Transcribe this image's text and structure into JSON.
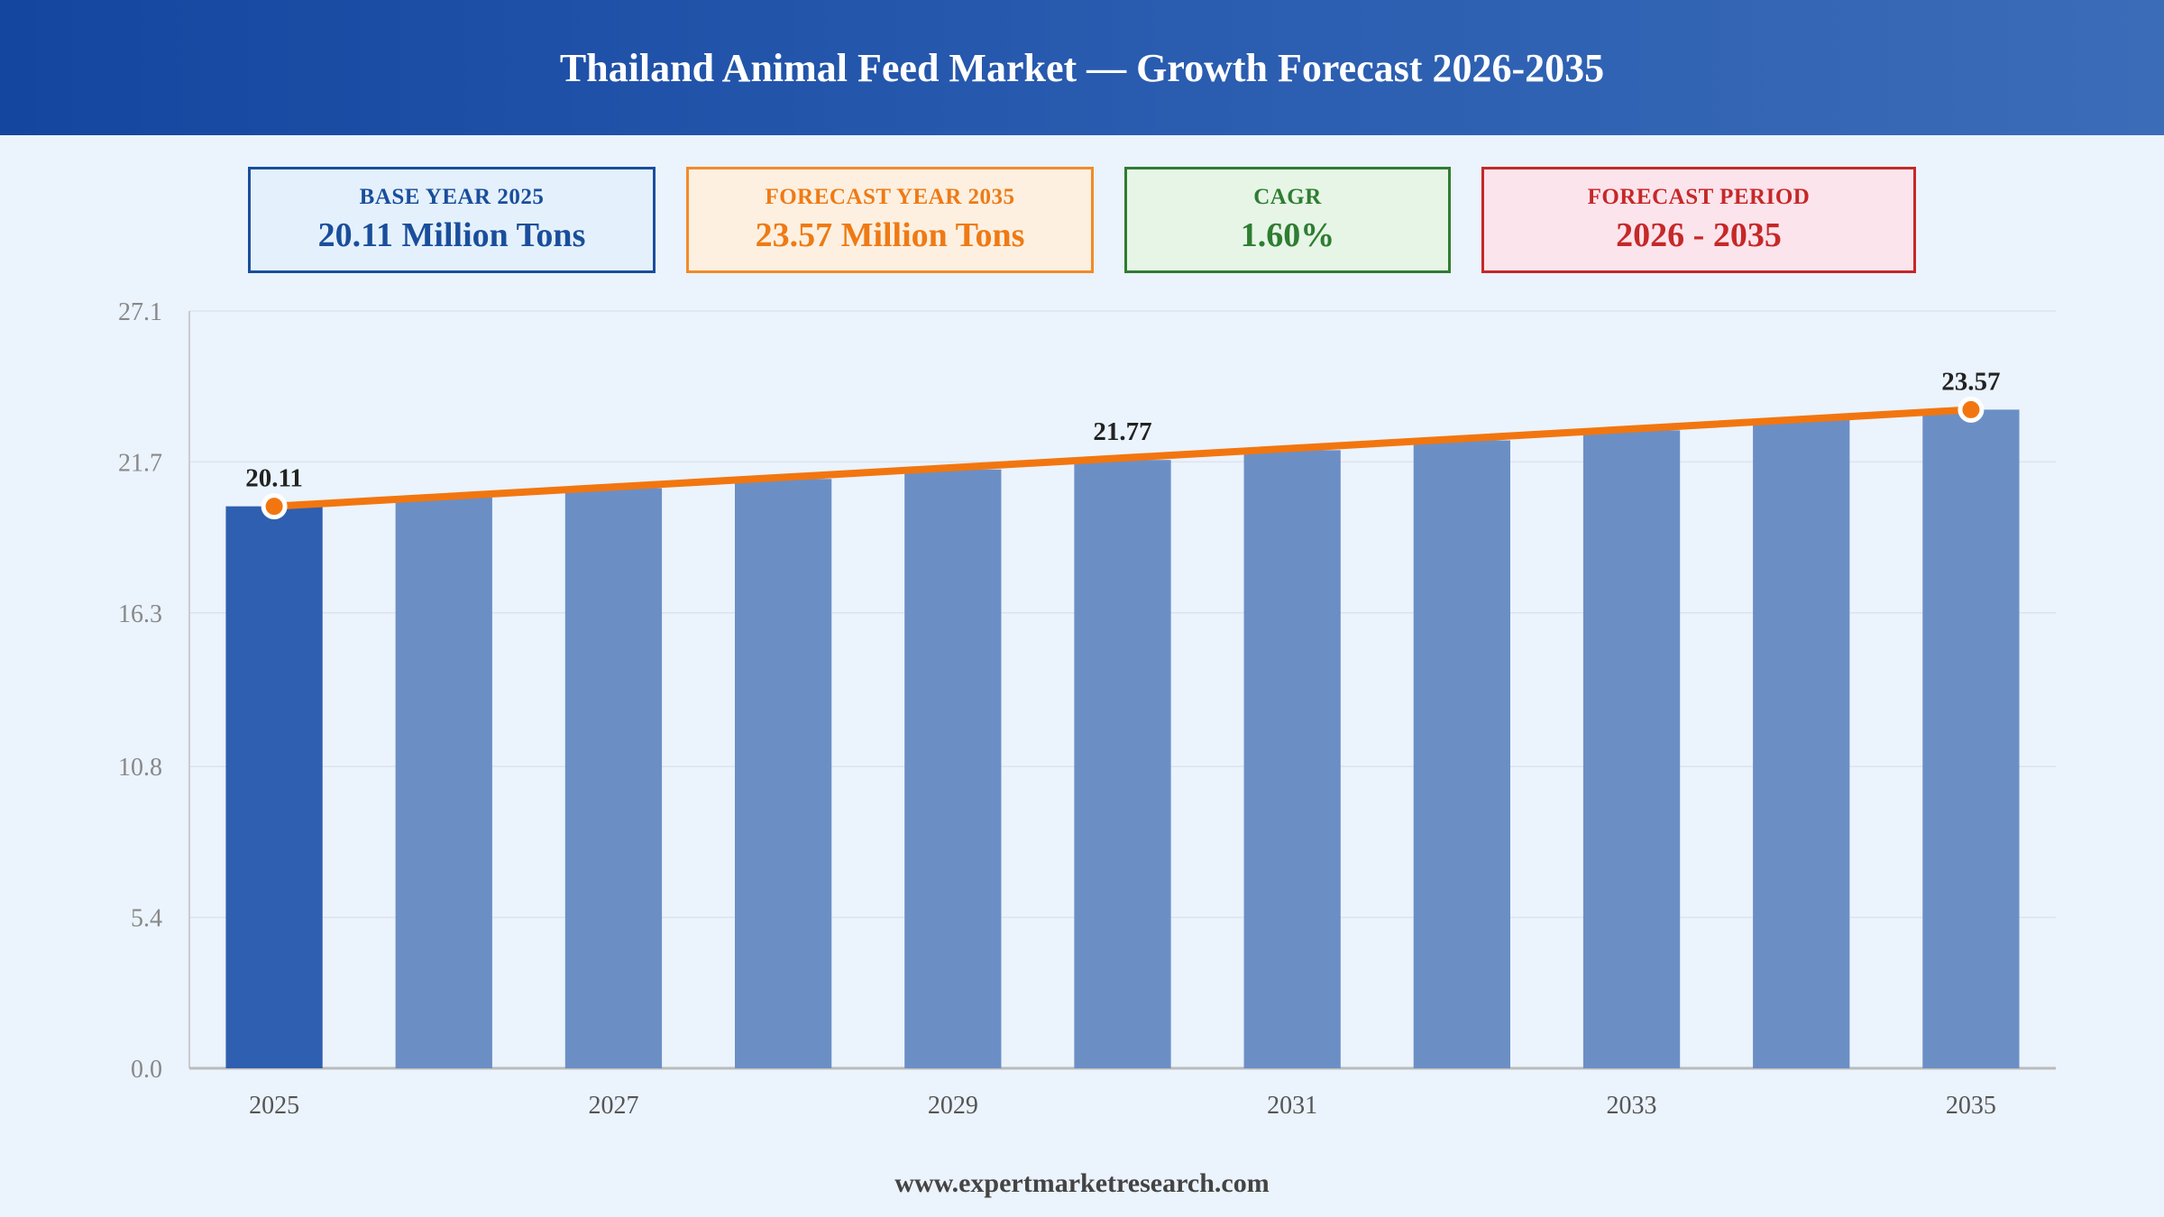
{
  "header": {
    "title": "Thailand Animal Feed Market — Growth Forecast 2026-2035"
  },
  "kpis": [
    {
      "label": "BASE YEAR 2025",
      "value": "20.11 Million Tons"
    },
    {
      "label": "FORECAST YEAR 2035",
      "value": "23.57 Million Tons"
    },
    {
      "label": "CAGR",
      "value": "1.60%"
    },
    {
      "label": "FORECAST PERIOD",
      "value": "2026 - 2035"
    }
  ],
  "colors": {
    "bar_base": "#2f5fb0",
    "bar_forecast": "#6b8fc5",
    "trend_line": "#f2760f",
    "axis_text": "#888888",
    "grid": "#dde3ec"
  },
  "chart_data": {
    "type": "bar",
    "title": "",
    "xlabel": "",
    "ylabel": "",
    "categories": [
      "2025",
      "2026",
      "2027",
      "2028",
      "2029",
      "2030",
      "2031",
      "2032",
      "2033",
      "2034",
      "2035"
    ],
    "values": [
      20.11,
      20.43,
      20.76,
      21.09,
      21.43,
      21.77,
      22.12,
      22.47,
      22.83,
      23.2,
      23.57
    ],
    "ylim": [
      0,
      27.1
    ],
    "yticks": [
      "0.0",
      "5.4",
      "10.8",
      "16.3",
      "21.7",
      "27.1"
    ],
    "xtick_labels": [
      "2025",
      "",
      "2027",
      "",
      "2029",
      "",
      "2031",
      "",
      "2033",
      "",
      "2035"
    ],
    "highlight_category": "2025",
    "trend_line": true,
    "data_labels": [
      {
        "category": "2025",
        "text": "20.11"
      },
      {
        "category": "2030",
        "text": "21.77"
      },
      {
        "category": "2035",
        "text": "23.57"
      }
    ],
    "markers_at": [
      "2025",
      "2035"
    ],
    "grid": true,
    "legend": "none"
  },
  "footer": {
    "text": "www.expertmarketresearch.com"
  }
}
